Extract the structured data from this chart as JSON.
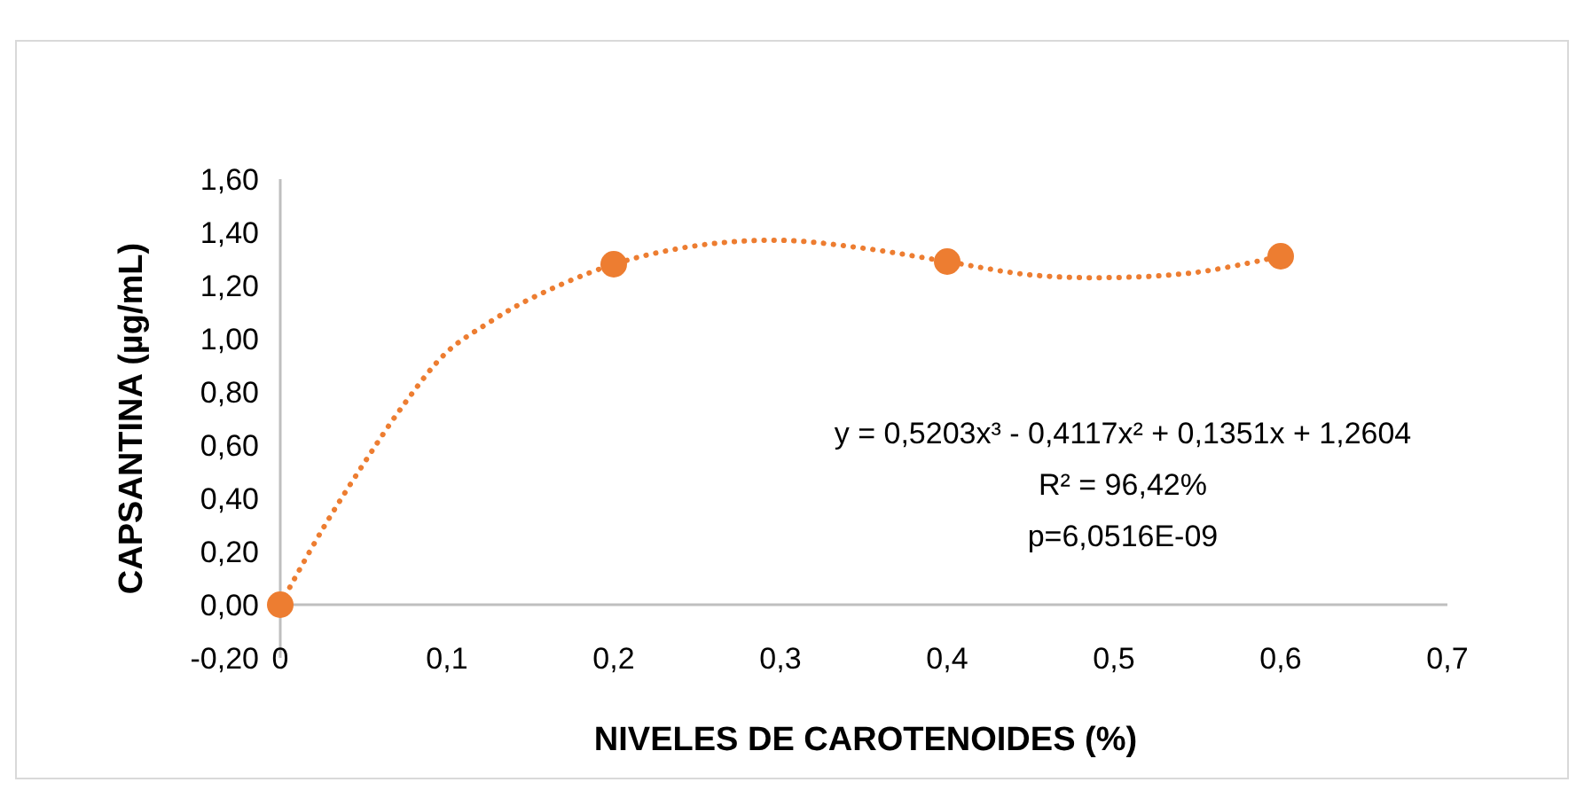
{
  "chart_data": {
    "type": "scatter",
    "xlabel": "NIVELES DE CAROTENOIDES  (%)",
    "ylabel": "CAPSANTINA (µg/mL)",
    "series": [
      {
        "type": "line",
        "color": "#ed7d31",
        "line_style": "dotted",
        "x": [
          0,
          0.025,
          0.05,
          0.075,
          0.1,
          0.125,
          0.15,
          0.2,
          0.25,
          0.3,
          0.35,
          0.4,
          0.45,
          0.5,
          0.55,
          0.6
        ],
        "values": [
          0,
          0.28,
          0.53,
          0.76,
          0.95,
          1.06,
          1.15,
          1.28,
          1.35,
          1.37,
          1.34,
          1.29,
          1.24,
          1.23,
          1.25,
          1.31
        ]
      },
      {
        "color": "#ed7d31",
        "marker": "circle",
        "x": [
          0,
          0.2,
          0.4,
          0.6
        ],
        "values": [
          0,
          1.28,
          1.29,
          1.31
        ]
      }
    ],
    "xlim": [
      0,
      0.7
    ],
    "xticks": [
      0,
      {
        "value": 0.1,
        "label": "0,1"
      },
      {
        "value": 0.2,
        "label": "0,2"
      },
      {
        "value": 0.3,
        "label": "0,3"
      },
      {
        "value": 0.4,
        "label": "0,4"
      },
      {
        "value": 0.5,
        "label": "0,5"
      },
      {
        "value": 0.6,
        "label": "0,6"
      },
      {
        "value": 0.7,
        "label": "0,7"
      }
    ],
    "ylim": [
      -0.2,
      1.6
    ],
    "yticks": [
      {
        "value": -0.2,
        "label": "-0,20"
      },
      {
        "value": 0,
        "label": "0,00"
      },
      {
        "value": 0.2,
        "label": "0,20"
      },
      {
        "value": 0.4,
        "label": "0,40"
      },
      {
        "value": 0.6,
        "label": "0,60"
      },
      {
        "value": 0.8,
        "label": "0,80"
      },
      {
        "value": 1,
        "label": "1,00"
      },
      {
        "value": 1.2,
        "label": "1,20"
      },
      {
        "value": 1.4,
        "label": "1,40"
      },
      {
        "value": 1.6,
        "label": "1,60"
      }
    ],
    "annotations": [
      "y = 0,5203x³ - 0,4117x² + 0,1351x + 1,2604",
      "R² = 96,42%",
      "p=6,0516E-09"
    ]
  }
}
